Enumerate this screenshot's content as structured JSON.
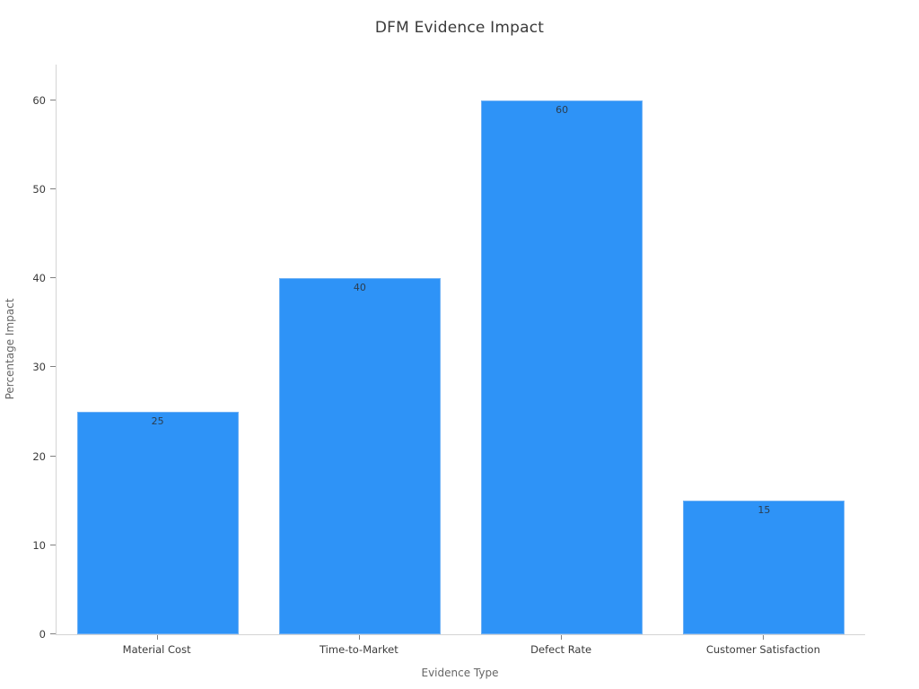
{
  "chart_data": {
    "type": "bar",
    "title": "DFM Evidence Impact",
    "xlabel": "Evidence Type",
    "ylabel": "Percentage Impact",
    "categories": [
      "Material Cost",
      "Time-to-Market",
      "Defect Rate",
      "Customer Satisfaction"
    ],
    "values": [
      25,
      40,
      60,
      15
    ],
    "value_labels": [
      "25",
      "40",
      "60",
      "15"
    ],
    "yticks": [
      0,
      10,
      20,
      30,
      40,
      50,
      60
    ],
    "ylim": [
      0,
      64
    ],
    "grid": false,
    "legend": false,
    "bar_color": "#2e93f7",
    "bar_edge_color": "#6fb1f5",
    "value_label_color": "#2b3d4f",
    "spine_color": "#d4d4d4",
    "tick_color": "#808080",
    "tick_label_color": "#3a3a3a",
    "axis_title_color": "#666666",
    "title_color": "#3a3a3a",
    "background_color": "#ffffff"
  }
}
